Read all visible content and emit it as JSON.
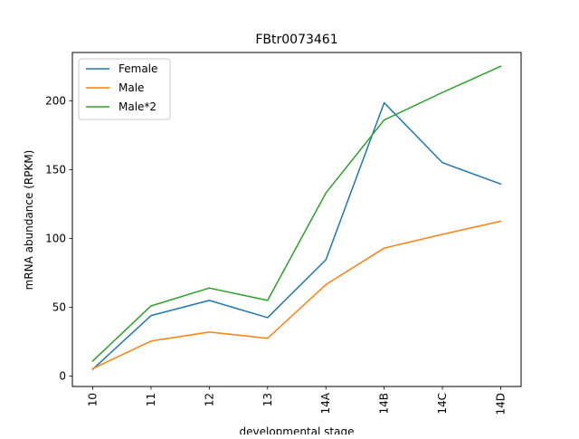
{
  "chart_data": {
    "type": "line",
    "title": "FBtr0073461",
    "xlabel": "developmental stage",
    "ylabel": "mRNA abundance (RPKM)",
    "categories": [
      "10",
      "11",
      "12",
      "13",
      "14A",
      "14B",
      "14C",
      "14D"
    ],
    "yticks": [
      0,
      50,
      100,
      150,
      200
    ],
    "ylim": [
      -7.5,
      235
    ],
    "legend_position": "upper-left",
    "grid": false,
    "series": [
      {
        "name": "Female",
        "color": "#1f77b4",
        "values": [
          5,
          44,
          55,
          42.5,
          84.5,
          198.5,
          155,
          139.5
        ]
      },
      {
        "name": "Male",
        "color": "#ff7f0e",
        "values": [
          5.5,
          25.5,
          32,
          27.5,
          66.5,
          93,
          103,
          112.5
        ]
      },
      {
        "name": "Male*2",
        "color": "#2ca02c",
        "values": [
          11,
          51,
          64,
          55,
          133,
          186,
          206,
          225
        ]
      }
    ]
  }
}
